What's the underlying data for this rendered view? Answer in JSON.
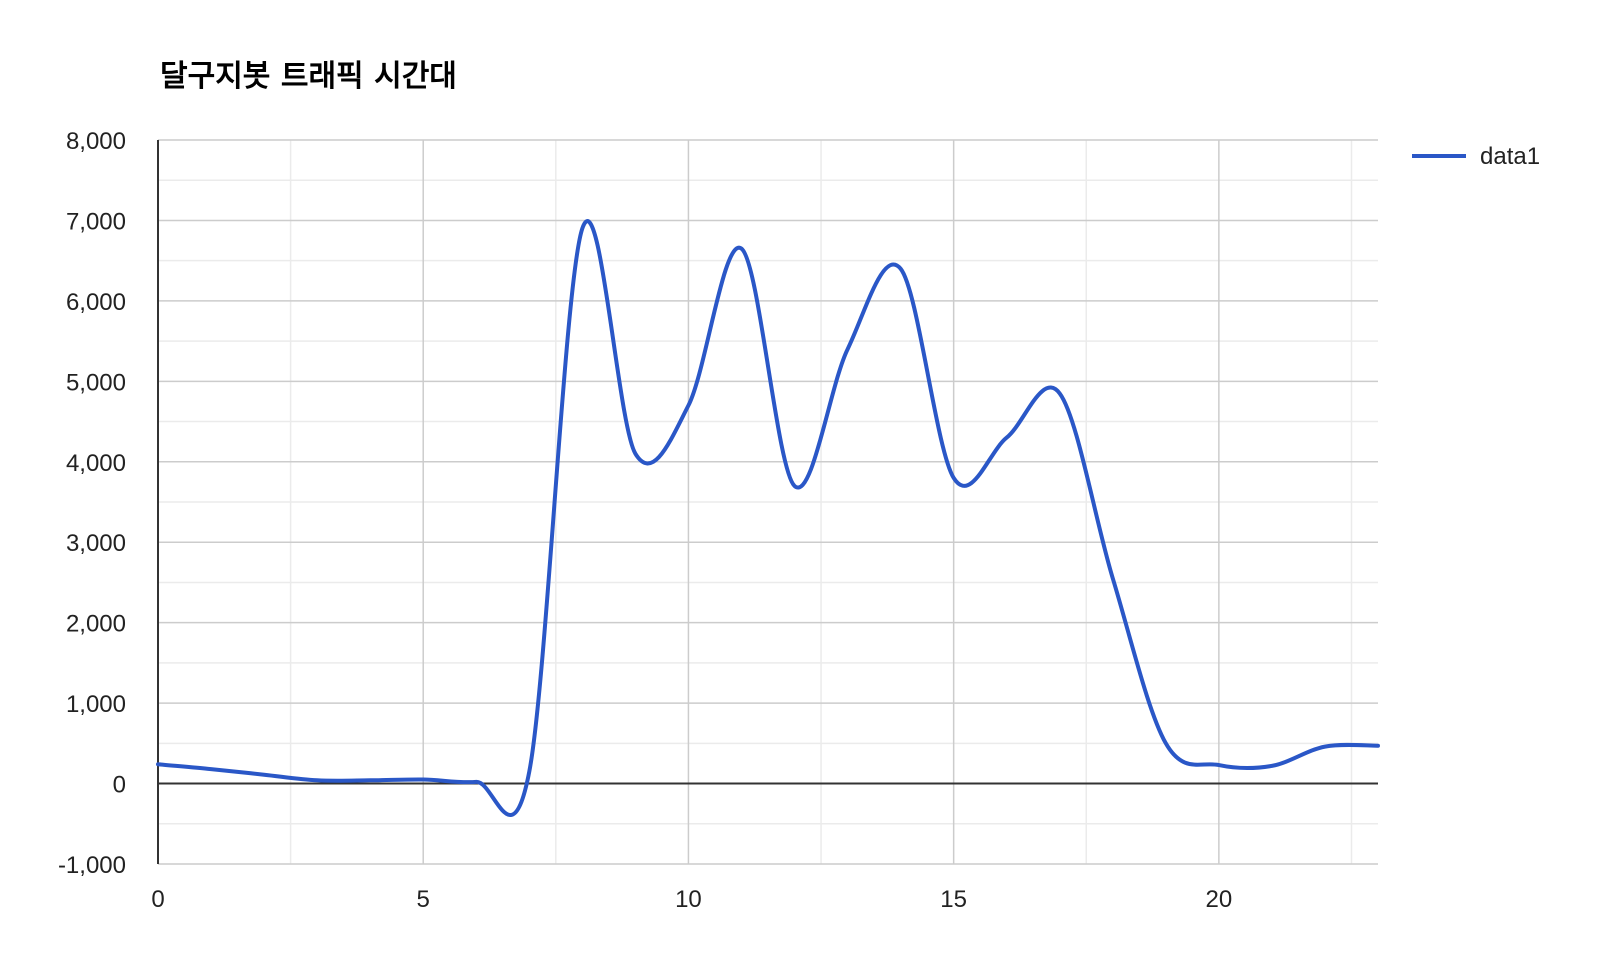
{
  "chart_data": {
    "type": "line",
    "title": "달구지봇 트래픽 시간대",
    "xlabel": "",
    "ylabel": "",
    "xlim": [
      0,
      23
    ],
    "ylim": [
      -1000,
      8000
    ],
    "x_ticks": [
      "0",
      "5",
      "10",
      "15",
      "20"
    ],
    "x_tick_values": [
      0,
      5,
      10,
      15,
      20
    ],
    "y_ticks": [
      "-1,000",
      "0",
      "1,000",
      "2,000",
      "3,000",
      "4,000",
      "5,000",
      "6,000",
      "7,000",
      "8,000"
    ],
    "y_tick_values": [
      -1000,
      0,
      1000,
      2000,
      3000,
      4000,
      5000,
      6000,
      7000,
      8000
    ],
    "grid": true,
    "legend": "right",
    "colors": {
      "series": "#2a57c7",
      "major_grid": "#cccccc",
      "minor_grid": "#ebebeb",
      "axis": "#333333"
    },
    "series": [
      {
        "name": "data1",
        "x": [
          0,
          1,
          2,
          3,
          4,
          5,
          6,
          7,
          8,
          9,
          10,
          11,
          12,
          13,
          14,
          15,
          16,
          17,
          18,
          19,
          20,
          21,
          22,
          23
        ],
        "values": [
          240,
          180,
          110,
          40,
          40,
          50,
          20,
          150,
          6900,
          4100,
          4700,
          6650,
          3700,
          5400,
          6400,
          3800,
          4300,
          4850,
          2550,
          500,
          230,
          220,
          460,
          470
        ]
      }
    ]
  }
}
